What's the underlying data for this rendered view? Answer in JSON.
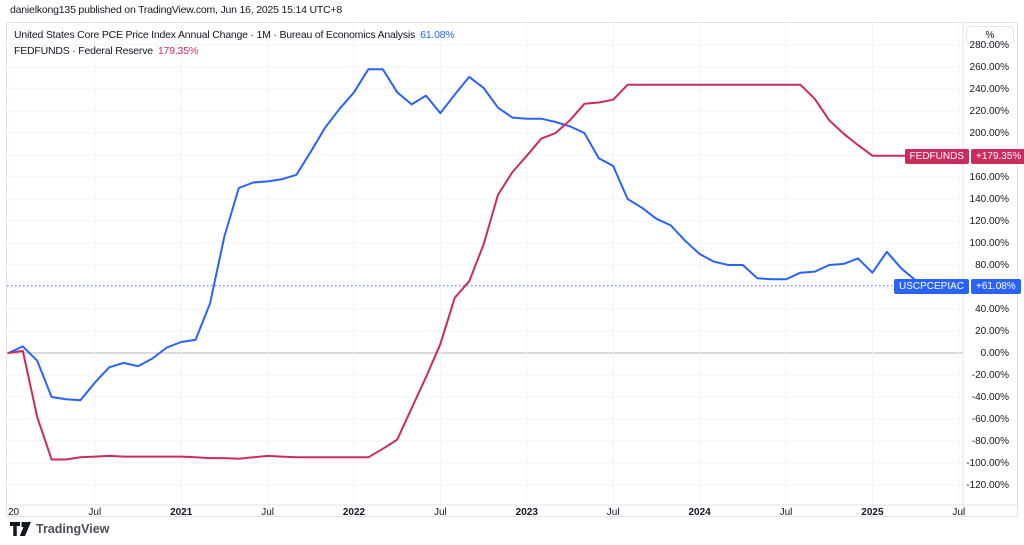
{
  "header": {
    "byline": "danielkong135 published on TradingView.com, Jun 16, 2025 15:14 UTC+8"
  },
  "legend": {
    "series1": {
      "title": "United States Core PCE Price Index Annual Change · 1M · Bureau of Economics Analysis",
      "value": "61.08%"
    },
    "series2": {
      "title": "FEDFUNDS · Federal Reserve",
      "value": "179.35%"
    }
  },
  "price_axis": {
    "unit_button": "%"
  },
  "time_axis": {
    "ticks": [
      {
        "label": "20",
        "month": 0,
        "major": false,
        "align": "left"
      },
      {
        "label": "Jul",
        "month": 6,
        "major": false
      },
      {
        "label": "2021",
        "month": 12,
        "major": true
      },
      {
        "label": "Jul",
        "month": 18,
        "major": false
      },
      {
        "label": "2022",
        "month": 24,
        "major": true
      },
      {
        "label": "Jul",
        "month": 30,
        "major": false
      },
      {
        "label": "2023",
        "month": 36,
        "major": true
      },
      {
        "label": "Jul",
        "month": 42,
        "major": false
      },
      {
        "label": "2024",
        "month": 48,
        "major": true
      },
      {
        "label": "Jul",
        "month": 54,
        "major": false
      },
      {
        "label": "2025",
        "month": 60,
        "major": true
      },
      {
        "label": "Jul",
        "month": 66,
        "major": false
      }
    ]
  },
  "badges": {
    "fed": {
      "label": "FEDFUNDS",
      "value": "+179.35%"
    },
    "pce": {
      "label": "USCPCEPIAC",
      "value": "+61.08%"
    }
  },
  "attribution": {
    "name": "TradingView"
  },
  "colors": {
    "blue": "#2962FF",
    "crimson": "#CC2B5C",
    "grid": "#F0F3FA",
    "zero_line": "#B2B5BE",
    "border": "#E0E3EB",
    "text": "#131722"
  },
  "chart_data": {
    "type": "line",
    "title": "United States Core PCE Price Index Annual Change vs FEDFUNDS, percent change since Jan 2020",
    "x_unit": "month",
    "x": [
      "2020-01",
      "2020-02",
      "2020-03",
      "2020-04",
      "2020-05",
      "2020-06",
      "2020-07",
      "2020-08",
      "2020-09",
      "2020-10",
      "2020-11",
      "2020-12",
      "2021-01",
      "2021-02",
      "2021-03",
      "2021-04",
      "2021-05",
      "2021-06",
      "2021-07",
      "2021-08",
      "2021-09",
      "2021-10",
      "2021-11",
      "2021-12",
      "2022-01",
      "2022-02",
      "2022-03",
      "2022-04",
      "2022-05",
      "2022-06",
      "2022-07",
      "2022-08",
      "2022-09",
      "2022-10",
      "2022-11",
      "2022-12",
      "2023-01",
      "2023-02",
      "2023-03",
      "2023-04",
      "2023-05",
      "2023-06",
      "2023-07",
      "2023-08",
      "2023-09",
      "2023-10",
      "2023-11",
      "2023-12",
      "2024-01",
      "2024-02",
      "2024-03",
      "2024-04",
      "2024-05",
      "2024-06",
      "2024-07",
      "2024-08",
      "2024-09",
      "2024-10",
      "2024-11",
      "2024-12",
      "2025-01",
      "2025-02",
      "2025-03",
      "2025-04",
      "2025-05"
    ],
    "ylim": [
      -130,
      292
    ],
    "grid": true,
    "y_axis": {
      "ticks": [
        {
          "value": 280,
          "label": "280.00%"
        },
        {
          "value": 260,
          "label": "260.00%"
        },
        {
          "value": 240,
          "label": "240.00%"
        },
        {
          "value": 220,
          "label": "220.00%"
        },
        {
          "value": 200,
          "label": "200.00%"
        },
        {
          "value": 180,
          "label": ""
        },
        {
          "value": 160,
          "label": "160.00%"
        },
        {
          "value": 140,
          "label": "140.00%"
        },
        {
          "value": 120,
          "label": "120.00%"
        },
        {
          "value": 100,
          "label": "100.00%"
        },
        {
          "value": 80,
          "label": "80.00%"
        },
        {
          "value": 60,
          "label": ""
        },
        {
          "value": 40,
          "label": "40.00%"
        },
        {
          "value": 20,
          "label": "20.00%"
        },
        {
          "value": 0,
          "label": "0.00%"
        },
        {
          "value": -20,
          "label": "-20.00%"
        },
        {
          "value": -40,
          "label": "-40.00%"
        },
        {
          "value": -60,
          "label": "-60.00%"
        },
        {
          "value": -80,
          "label": "-80.00%"
        },
        {
          "value": -100,
          "label": "-100.00%"
        },
        {
          "value": -120,
          "label": "-120.00%"
        }
      ]
    },
    "series": [
      {
        "name": "USCPCEPIAC",
        "label": "United States Core PCE Price Index Annual Change",
        "color": "#2962FF",
        "current_value": 61.08,
        "current_label": "+61.08%",
        "values": [
          0,
          6,
          -7,
          -40,
          -42,
          -43,
          -27,
          -13,
          -9,
          -12,
          -5,
          5,
          10,
          12,
          45,
          106,
          150,
          155,
          156,
          158,
          162,
          183,
          205,
          222,
          237,
          258,
          258,
          237,
          226,
          234,
          218,
          235,
          251,
          241,
          223,
          214,
          213,
          213,
          210,
          206,
          200,
          177,
          170,
          140,
          132,
          122,
          116,
          102,
          90,
          83,
          80,
          80,
          68,
          67,
          67,
          73,
          74,
          80,
          81,
          86,
          73,
          92,
          77,
          66,
          61.08
        ]
      },
      {
        "name": "FEDFUNDS",
        "label": "Federal Reserve",
        "color": "#CC2B5C",
        "current_value": 179.35,
        "current_label": "+179.35%",
        "values": [
          0,
          1.9,
          -58.1,
          -96.8,
          -96.8,
          -94.8,
          -94.2,
          -93.5,
          -94.2,
          -94.2,
          -94.2,
          -94.2,
          -94.2,
          -94.8,
          -95.5,
          -95.5,
          -96.1,
          -94.8,
          -93.5,
          -94.2,
          -94.8,
          -94.8,
          -94.8,
          -94.8,
          -94.8,
          -94.8,
          -87.1,
          -78.7,
          -50.3,
          -21.9,
          8.4,
          50.3,
          65.2,
          98.7,
          143.9,
          164.5,
          179.4,
          194.8,
          200,
          211.6,
          226.5,
          227.7,
          230.3,
          243.9,
          243.9,
          243.9,
          243.9,
          243.9,
          243.9,
          243.9,
          243.9,
          243.9,
          243.9,
          243.9,
          243.9,
          243.9,
          231,
          211.6,
          199.4,
          189,
          179.35,
          179.35,
          179.35,
          179.35,
          179.35
        ]
      }
    ],
    "legend_position": "top-left"
  }
}
